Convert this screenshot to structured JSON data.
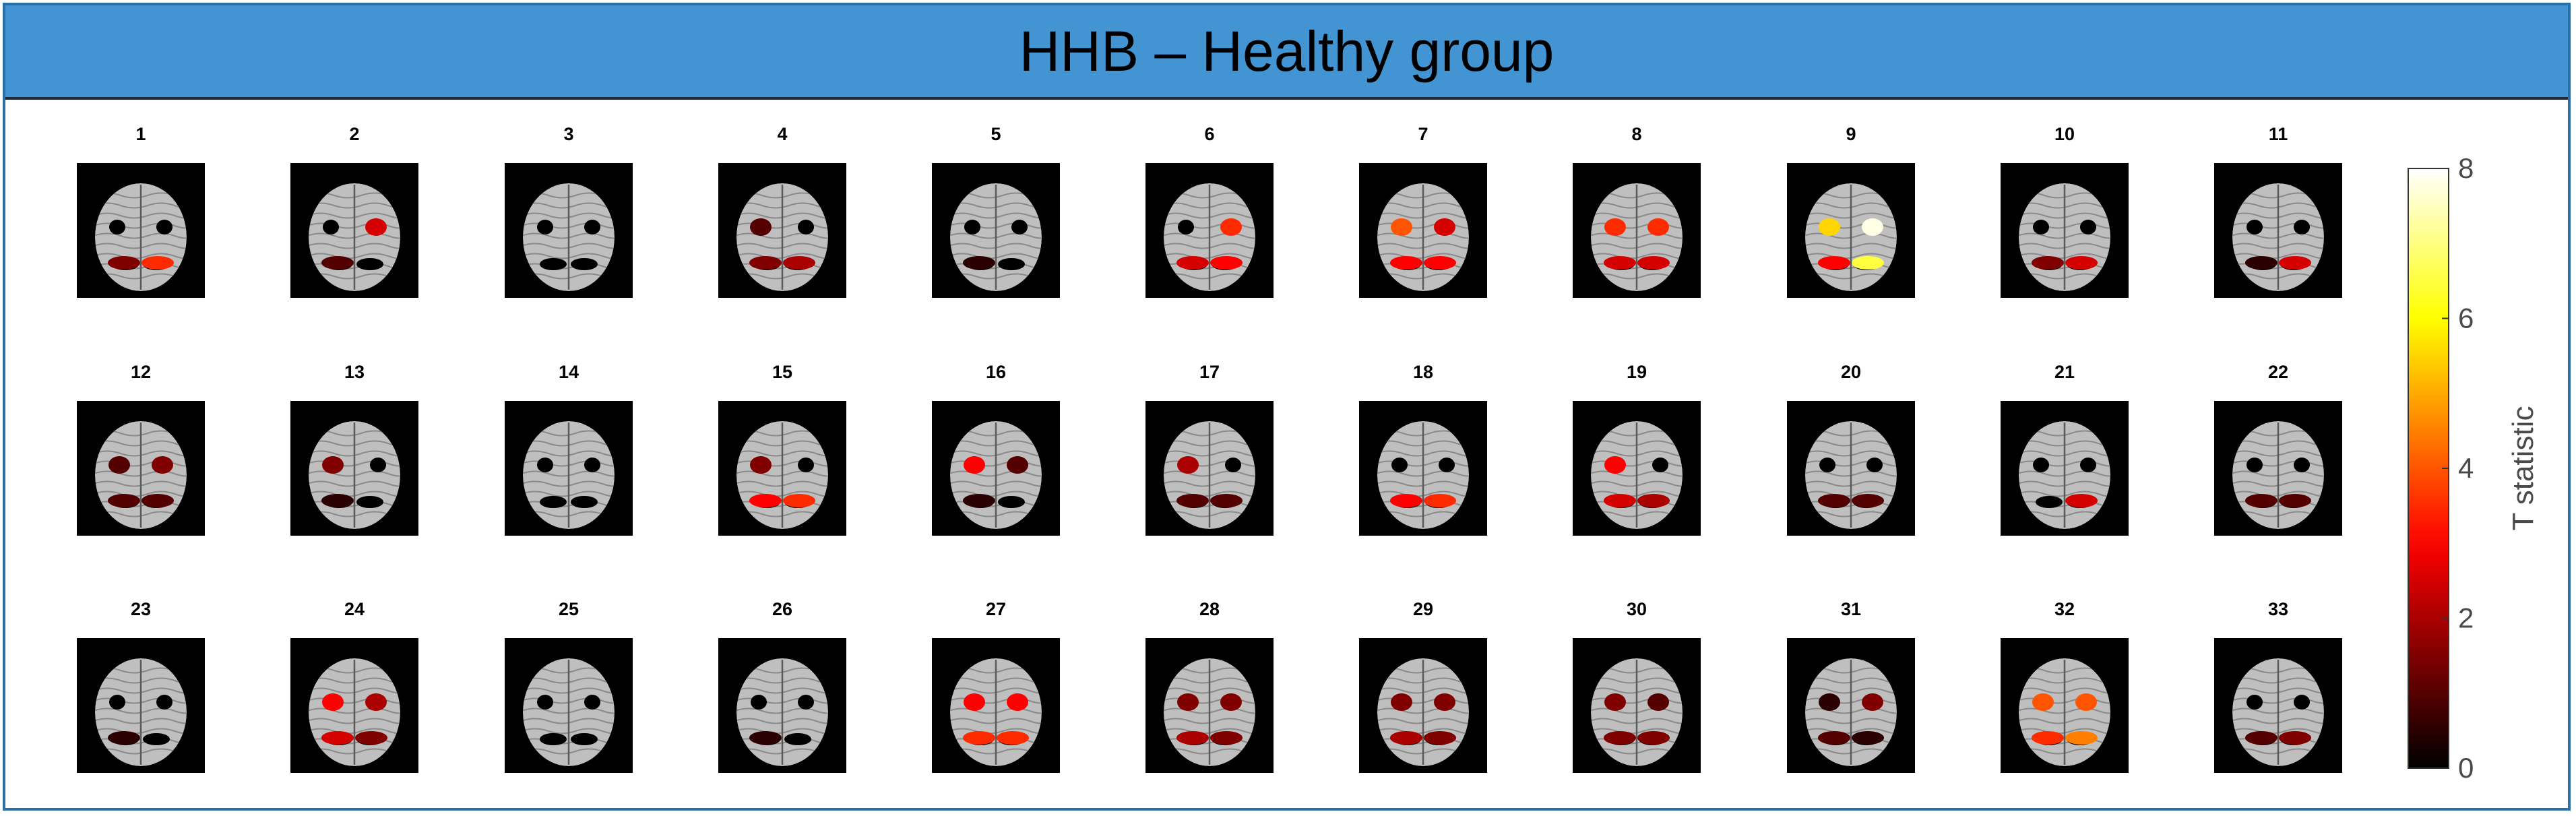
{
  "title": "HHB – Healthy group",
  "panels": [
    "1",
    "2",
    "3",
    "4",
    "5",
    "6",
    "7",
    "8",
    "9",
    "10",
    "11",
    "12",
    "13",
    "14",
    "15",
    "16",
    "17",
    "18",
    "19",
    "20",
    "21",
    "22",
    "23",
    "24",
    "25",
    "26",
    "27",
    "28",
    "29",
    "30",
    "31",
    "32",
    "33"
  ],
  "activations": [
    {
      "spots": [
        {
          "r": "LP",
          "v": 1.5
        },
        {
          "r": "RP",
          "v": 3.5
        }
      ]
    },
    {
      "spots": [
        {
          "r": "RF",
          "v": 2.5
        },
        {
          "r": "LP",
          "v": 1.0
        }
      ]
    },
    {
      "spots": []
    },
    {
      "spots": [
        {
          "r": "LF",
          "v": 1.0
        },
        {
          "r": "LP",
          "v": 1.5
        },
        {
          "r": "RP",
          "v": 2.0
        }
      ]
    },
    {
      "spots": [
        {
          "r": "LP",
          "v": 0.5
        }
      ]
    },
    {
      "spots": [
        {
          "r": "RF",
          "v": 3.5
        },
        {
          "r": "RP",
          "v": 3.0
        },
        {
          "r": "LP",
          "v": 2.5
        }
      ]
    },
    {
      "spots": [
        {
          "r": "LF",
          "v": 4.0
        },
        {
          "r": "RF",
          "v": 2.5
        },
        {
          "r": "LP",
          "v": 3.0
        },
        {
          "r": "RP",
          "v": 3.0
        }
      ]
    },
    {
      "spots": [
        {
          "r": "LF",
          "v": 3.5
        },
        {
          "r": "RF",
          "v": 3.5
        },
        {
          "r": "LP",
          "v": 2.5
        },
        {
          "r": "RP",
          "v": 2.5
        }
      ]
    },
    {
      "spots": [
        {
          "r": "LF",
          "v": 5.5
        },
        {
          "r": "RF",
          "v": 7.8
        },
        {
          "r": "LP",
          "v": 3.0
        },
        {
          "r": "RP",
          "v": 6.5
        }
      ]
    },
    {
      "spots": [
        {
          "r": "LP",
          "v": 1.5
        },
        {
          "r": "RP",
          "v": 2.5
        }
      ]
    },
    {
      "spots": [
        {
          "r": "LP",
          "v": 0.5
        },
        {
          "r": "RP",
          "v": 2.5
        }
      ]
    },
    {
      "spots": [
        {
          "r": "LF",
          "v": 1.0
        },
        {
          "r": "RF",
          "v": 1.5
        },
        {
          "r": "LP",
          "v": 1.0
        },
        {
          "r": "RP",
          "v": 1.0
        }
      ]
    },
    {
      "spots": [
        {
          "r": "LF",
          "v": 1.5
        },
        {
          "r": "LP",
          "v": 0.5
        }
      ]
    },
    {
      "spots": []
    },
    {
      "spots": [
        {
          "r": "LF",
          "v": 1.5
        },
        {
          "r": "LP",
          "v": 3.0
        },
        {
          "r": "RP",
          "v": 3.5
        }
      ]
    },
    {
      "spots": [
        {
          "r": "LF",
          "v": 3.0
        },
        {
          "r": "RF",
          "v": 1.0
        },
        {
          "r": "LP",
          "v": 0.5
        }
      ]
    },
    {
      "spots": [
        {
          "r": "LF",
          "v": 2.0
        },
        {
          "r": "LP",
          "v": 1.0
        },
        {
          "r": "RP",
          "v": 1.0
        }
      ]
    },
    {
      "spots": [
        {
          "r": "LP",
          "v": 3.0
        },
        {
          "r": "RP",
          "v": 3.5
        }
      ]
    },
    {
      "spots": [
        {
          "r": "LF",
          "v": 3.0
        },
        {
          "r": "LP",
          "v": 2.5
        },
        {
          "r": "RP",
          "v": 2.0
        }
      ]
    },
    {
      "spots": [
        {
          "r": "LP",
          "v": 1.0
        },
        {
          "r": "RP",
          "v": 1.0
        }
      ]
    },
    {
      "spots": [
        {
          "r": "RP",
          "v": 2.5
        }
      ]
    },
    {
      "spots": [
        {
          "r": "LP",
          "v": 1.0
        },
        {
          "r": "RP",
          "v": 1.0
        }
      ]
    },
    {
      "spots": [
        {
          "r": "LP",
          "v": 0.5
        }
      ]
    },
    {
      "spots": [
        {
          "r": "LF",
          "v": 3.0
        },
        {
          "r": "RF",
          "v": 2.0
        },
        {
          "r": "LP",
          "v": 2.5
        },
        {
          "r": "RP",
          "v": 1.5
        }
      ]
    },
    {
      "spots": []
    },
    {
      "spots": [
        {
          "r": "LP",
          "v": 0.5
        }
      ]
    },
    {
      "spots": [
        {
          "r": "LF",
          "v": 3.0
        },
        {
          "r": "RF",
          "v": 3.0
        },
        {
          "r": "LP",
          "v": 3.5
        },
        {
          "r": "RP",
          "v": 3.5
        }
      ]
    },
    {
      "spots": [
        {
          "r": "LF",
          "v": 1.5
        },
        {
          "r": "RF",
          "v": 1.5
        },
        {
          "r": "LP",
          "v": 2.0
        },
        {
          "r": "RP",
          "v": 1.5
        }
      ]
    },
    {
      "spots": [
        {
          "r": "LF",
          "v": 1.5
        },
        {
          "r": "RF",
          "v": 1.5
        },
        {
          "r": "LP",
          "v": 2.0
        },
        {
          "r": "RP",
          "v": 1.5
        }
      ]
    },
    {
      "spots": [
        {
          "r": "LF",
          "v": 1.5
        },
        {
          "r": "RF",
          "v": 1.0
        },
        {
          "r": "LP",
          "v": 1.5
        },
        {
          "r": "RP",
          "v": 1.5
        }
      ]
    },
    {
      "spots": [
        {
          "r": "LF",
          "v": 0.5
        },
        {
          "r": "RF",
          "v": 1.5
        },
        {
          "r": "LP",
          "v": 1.0
        },
        {
          "r": "RP",
          "v": 0.5
        }
      ]
    },
    {
      "spots": [
        {
          "r": "LF",
          "v": 4.0
        },
        {
          "r": "RF",
          "v": 4.0
        },
        {
          "r": "LP",
          "v": 3.5
        },
        {
          "r": "RP",
          "v": 4.5
        }
      ]
    },
    {
      "spots": [
        {
          "r": "LP",
          "v": 1.0
        },
        {
          "r": "RP",
          "v": 1.5
        }
      ]
    }
  ],
  "colorbar": {
    "label": "T statistic",
    "min": 0,
    "max": 8,
    "ticks": [
      "0",
      "2",
      "4",
      "6",
      "8"
    ]
  },
  "colors": {
    "header": "#4294d2",
    "frame": "#2a6fa8",
    "panel_bg": "#000000",
    "brain": "#bfbfbf"
  }
}
